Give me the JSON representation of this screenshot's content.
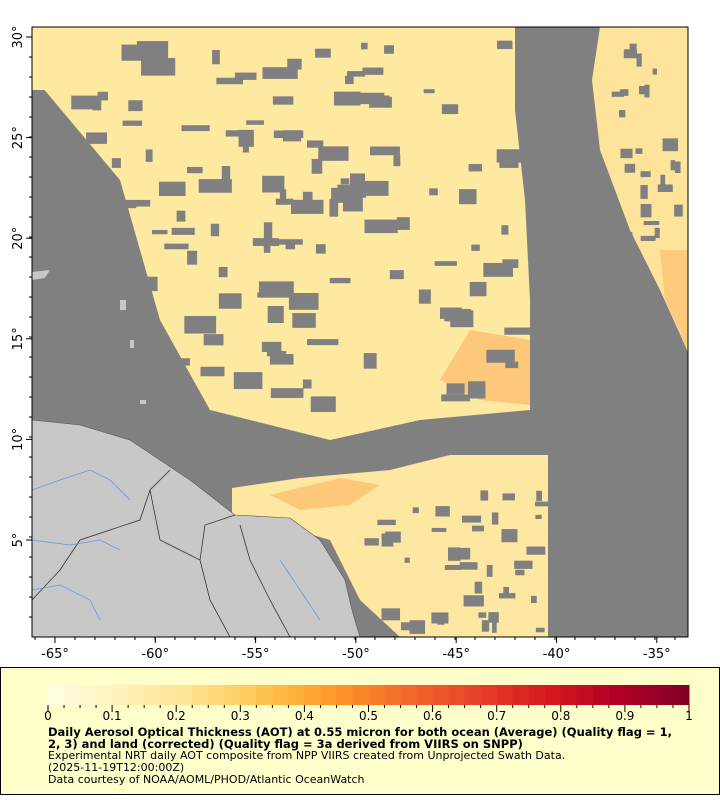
{
  "map": {
    "lon_ticks": [
      "-65°",
      "-60°",
      "-55°",
      "-50°",
      "-45°",
      "-40°",
      "-35°"
    ],
    "lat_ticks": [
      "30°",
      "25°",
      "20°",
      "15°",
      "10°",
      "5°"
    ],
    "colors": {
      "no_data": "#808080",
      "land": "#c8c8c8",
      "river": "#6699dd",
      "border": "#333333"
    }
  },
  "legend": {
    "tick_labels": [
      "0",
      "0.1",
      "0.2",
      "0.3",
      "0.4",
      "0.5",
      "0.6",
      "0.7",
      "0.8",
      "0.9",
      "1"
    ],
    "range": [
      0,
      1
    ],
    "palette": [
      "#ffffe5",
      "#fff1b8",
      "#fee391",
      "#fec44f",
      "#fe9929",
      "#f26b2a",
      "#e8412b",
      "#d7191c",
      "#b10026",
      "#800026"
    ],
    "title": "Daily Aerosol Optical Thickness (AOT) at 0.55 micron for both ocean (Average) (Quality flag = 1, 2, 3) and land (corrected) (Quality flag = 3a derived from VIIRS on SNPP)",
    "line1": "Experimental NRT daily AOT composite from NPP VIIRS created from Unprojected Swath Data.",
    "line2": "(2025-11-19T12:00:00Z)",
    "line3": "Data courtesy of NOAA/AOML/PHOD/Atlantic OceanWatch"
  }
}
